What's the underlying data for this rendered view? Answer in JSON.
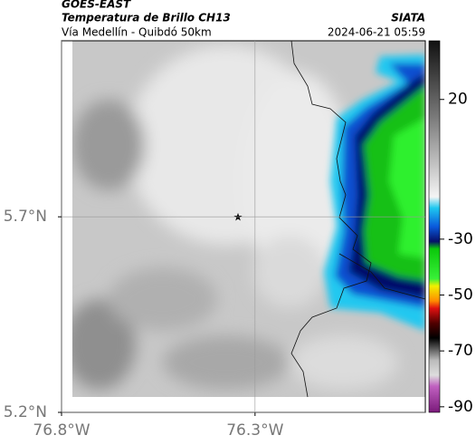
{
  "header": {
    "source": "GOES-EAST",
    "title": "Temperatura de Brillo CH13",
    "org": "SIATA",
    "subtitle": "Vía Medellín - Quibdó 50km",
    "datetime": "2024-06-21 05:59"
  },
  "map": {
    "xlim": [
      -76.8,
      -75.86
    ],
    "ylim": [
      5.2,
      6.15
    ],
    "xticks": [
      {
        "value": -76.8,
        "label": "76.8°W"
      },
      {
        "value": -76.3,
        "label": "76.3°W"
      }
    ],
    "yticks": [
      {
        "value": 5.7,
        "label": "5.7°N"
      },
      {
        "value": 5.2,
        "label": "5.2°N"
      }
    ],
    "grid": true
  },
  "colorbar": {
    "lim": [
      -92,
      41
    ],
    "ticks": [
      20,
      -30,
      -50,
      -70,
      -90
    ]
  }
}
